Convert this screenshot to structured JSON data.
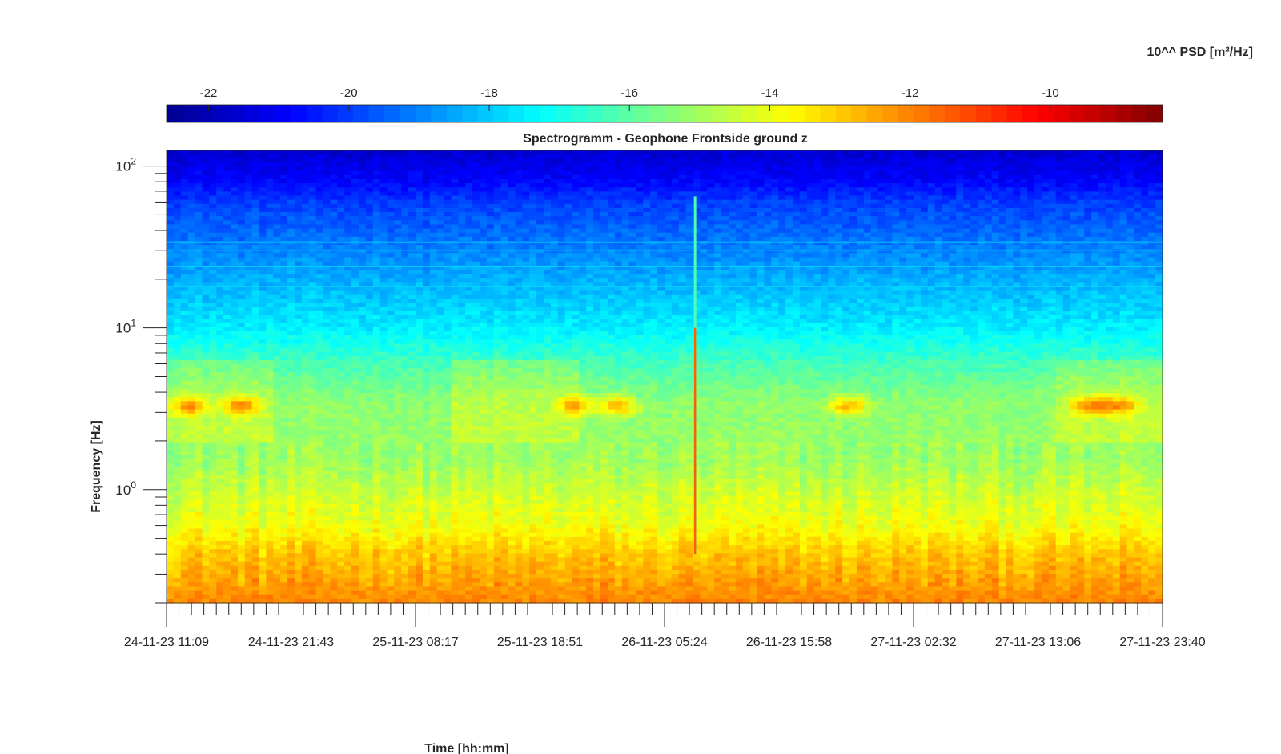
{
  "chart_data": {
    "type": "heatmap",
    "title": "Spectrogramm - Geophone Frontside ground z",
    "xlabel": "Time [hh:mm]",
    "ylabel": "Frequency [Hz]",
    "colorbar_label": "10^^ PSD [m²/Hz]",
    "colorbar_ticks": [
      "-22",
      "-20",
      "-18",
      "-16",
      "-14",
      "-12",
      "-10"
    ],
    "colorbar_tick_values": [
      -22,
      -20,
      -18,
      -16,
      -14,
      -12,
      -10
    ],
    "colorbar_range": [
      -22.6,
      -8.4
    ],
    "colorbar_position": "top",
    "colormap": "jet",
    "colormap_colors": [
      "#00008f",
      "#0000ff",
      "#00ffff",
      "#ffff00",
      "#ff0000",
      "#800000"
    ],
    "x_ticks": [
      "24-11-23 11:09",
      "24-11-23 21:43",
      "25-11-23 08:17",
      "25-11-23 18:51",
      "26-11-23 05:24",
      "26-11-23 15:58",
      "27-11-23 02:32",
      "27-11-23 13:06",
      "27-11-23 23:40"
    ],
    "x_range": [
      "24-11-23 11:09",
      "27-11-23 23:40"
    ],
    "y_scale": "log",
    "y_ticks_base": "10",
    "y_ticks_exponents": [
      "2",
      "1",
      "0"
    ],
    "y_tick_values": [
      100,
      10,
      1
    ],
    "ylim": [
      0.2,
      125
    ],
    "grid": false,
    "features": [
      {
        "kind": "broadband transient",
        "time": "26-11-23 08:00",
        "freq_range_hz": [
          0.4,
          65
        ],
        "psd_log10": -11.5
      },
      {
        "kind": "narrowband events",
        "freq_hz": 3.3,
        "times": [
          "24-11-23 13:00",
          "24-11-23 17:30",
          "25-11-23 22:00",
          "26-11-23 01:30",
          "26-11-23 21:00",
          "27-11-23 17:30",
          "27-11-23 20:00"
        ],
        "psd_log10": -12
      }
    ],
    "psd_profile_log10": [
      {
        "freq_hz": 125,
        "psd": -21.6
      },
      {
        "freq_hz": 80,
        "psd": -20.8
      },
      {
        "freq_hz": 60,
        "psd": -20.0
      },
      {
        "freq_hz": 40,
        "psd": -19.4
      },
      {
        "freq_hz": 20,
        "psd": -18.4
      },
      {
        "freq_hz": 10,
        "psd": -17.5
      },
      {
        "freq_hz": 6,
        "psd": -16.3
      },
      {
        "freq_hz": 3.5,
        "psd": -15.3
      },
      {
        "freq_hz": 1.5,
        "psd": -15.1
      },
      {
        "freq_hz": 1.0,
        "psd": -14.5
      },
      {
        "freq_hz": 0.6,
        "psd": -13.9
      },
      {
        "freq_hz": 0.4,
        "psd": -13.0
      },
      {
        "freq_hz": 0.2,
        "psd": -12.0
      }
    ]
  }
}
